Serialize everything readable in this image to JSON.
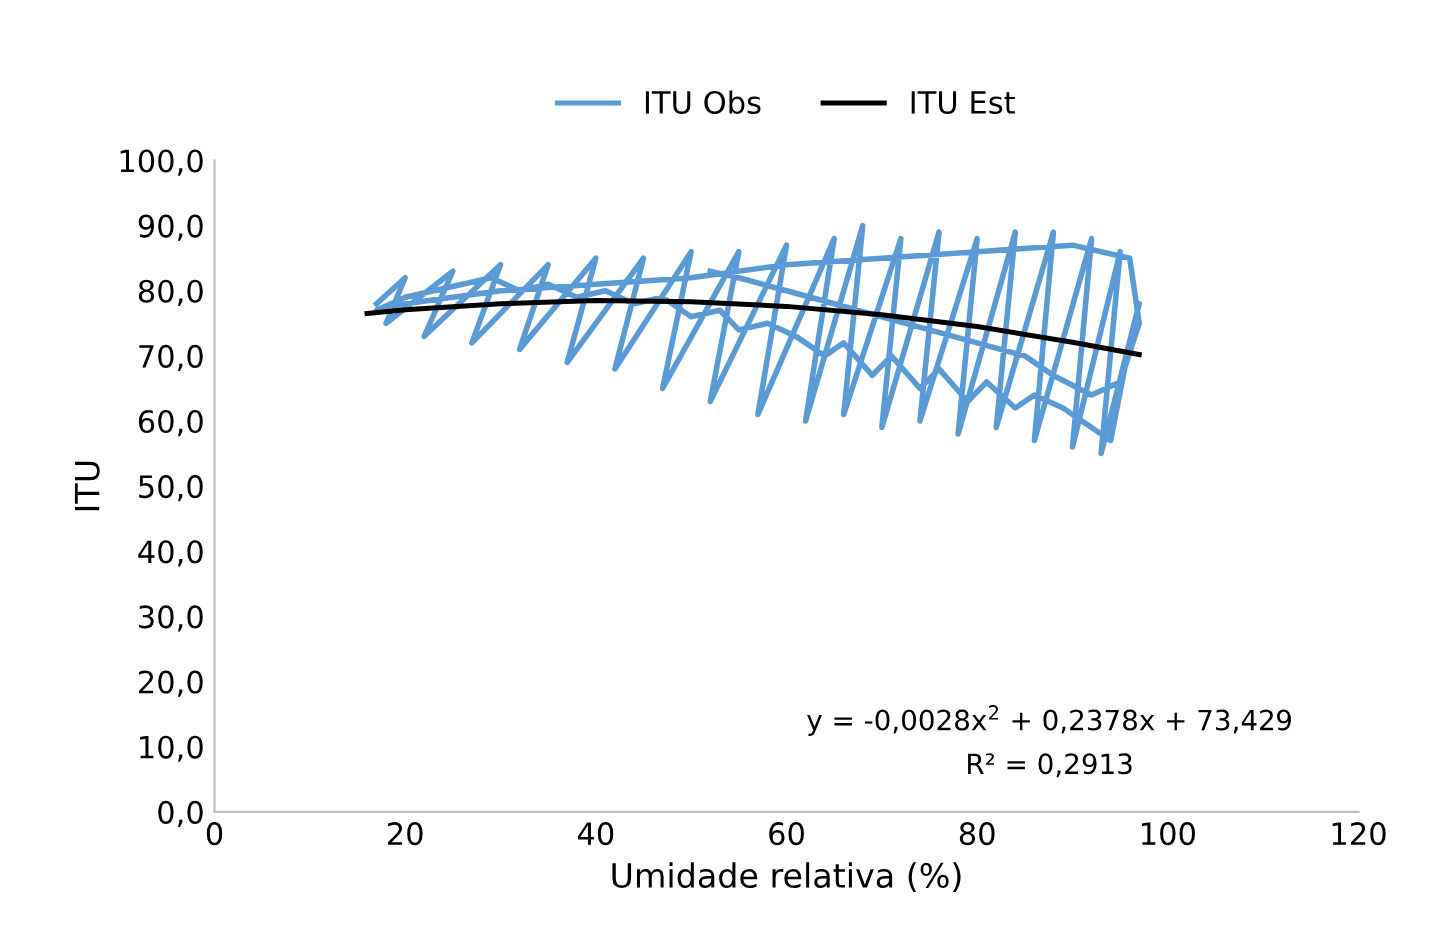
{
  "chart_data": {
    "type": "line",
    "xlabel": "Umidade relativa (%)",
    "ylabel": "ITU",
    "xlim": [
      0,
      120
    ],
    "xticks": [
      0,
      20,
      40,
      60,
      80,
      100,
      120
    ],
    "ylim": [
      0,
      100
    ],
    "yticks": [
      {
        "value": 0,
        "label": "0,0"
      },
      {
        "value": 10,
        "label": "10,0"
      },
      {
        "value": 20,
        "label": "20,0"
      },
      {
        "value": 30,
        "label": "30,0"
      },
      {
        "value": 40,
        "label": "40,0"
      },
      {
        "value": 50,
        "label": "50,0"
      },
      {
        "value": 60,
        "label": "60,0"
      },
      {
        "value": 70,
        "label": "70,0"
      },
      {
        "value": 80,
        "label": "80,0"
      },
      {
        "value": 90,
        "label": "90,0"
      },
      {
        "value": 100,
        "label": "100,0"
      }
    ],
    "grid": false,
    "legend": "top",
    "marker": "none",
    "line_style": "solid",
    "series": [
      {
        "name": "ITU Obs",
        "color": "#5b9bd5",
        "x": [
          17,
          20,
          18,
          25,
          22,
          30,
          27,
          35,
          32,
          40,
          37,
          45,
          42,
          50,
          47,
          55,
          52,
          60,
          57,
          65,
          62,
          68,
          66,
          72,
          70,
          76,
          74,
          80,
          78,
          84,
          82,
          88,
          86,
          92,
          90,
          95,
          93,
          97,
          96,
          94,
          91,
          89,
          86,
          84,
          81,
          79,
          76,
          74,
          71,
          69,
          66,
          64,
          61,
          58,
          55,
          53,
          50,
          47,
          44,
          41,
          38,
          35,
          32,
          29,
          26,
          23,
          20,
          17,
          20,
          30,
          40,
          50,
          60,
          70,
          80,
          90,
          96,
          97,
          95,
          92,
          88,
          85,
          80,
          75,
          70,
          65,
          60,
          55,
          52
        ],
        "values": [
          78,
          82,
          75,
          83,
          73,
          84,
          72,
          84,
          71,
          85,
          69,
          85,
          68,
          86,
          65,
          86,
          63,
          87,
          61,
          88,
          60,
          90,
          61,
          88,
          59,
          89,
          60,
          88,
          58,
          89,
          59,
          89,
          57,
          88,
          56,
          86,
          55,
          78,
          72,
          57,
          60,
          62,
          64,
          62,
          66,
          63,
          68,
          65,
          70,
          67,
          72,
          70,
          73,
          75,
          74,
          77,
          76,
          79,
          78,
          80,
          79,
          81,
          80,
          82,
          81,
          80,
          79,
          77,
          78,
          80,
          81,
          82,
          84,
          85,
          86,
          87,
          85,
          75,
          66,
          64,
          67,
          70,
          72,
          74,
          76,
          78,
          80,
          82,
          83
        ]
      },
      {
        "name": "ITU Est",
        "color": "#000000",
        "x": [
          16,
          20,
          30,
          40,
          50,
          60,
          70,
          80,
          90,
          97
        ],
        "values": [
          76.5,
          77.1,
          78.0,
          78.5,
          78.3,
          77.6,
          76.3,
          74.5,
          72.1,
          70.2
        ]
      }
    ],
    "annotations": [
      "y = -0,0028x$^{2}$ + 0,2378x + 73,429",
      "R² = 0,2913"
    ]
  }
}
